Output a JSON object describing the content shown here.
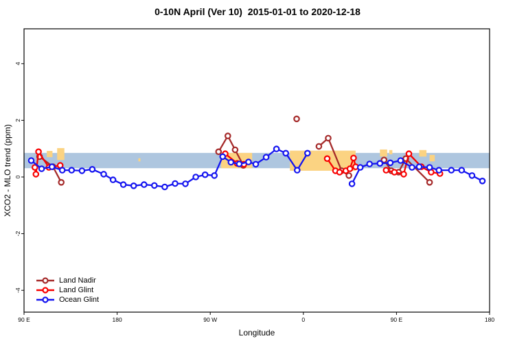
{
  "chart_data": {
    "type": "line",
    "title": "0-10N April (Ver 10)  2015-01-01 to 2020-12-18",
    "xlabel": "Longitude",
    "ylabel": "XCO2 - MLO trend (ppm)",
    "grid": false,
    "legend_position": "bottom-left",
    "x_axis_note": "wrapped longitude axis: 90E -> 180 -> 90W -> 0 -> 90E -> 180, mapped to 90..540",
    "xlim": [
      90,
      540
    ],
    "ylim": [
      -4.77,
      5.23
    ],
    "x_ticks": [
      {
        "x": 90,
        "label": "90 E"
      },
      {
        "x": 180,
        "label": "180"
      },
      {
        "x": 270,
        "label": "90 W"
      },
      {
        "x": 360,
        "label": "0"
      },
      {
        "x": 450,
        "label": "90 E"
      },
      {
        "x": 540,
        "label": "180"
      }
    ],
    "y_ticks": [
      {
        "y": -4,
        "label": "-4"
      },
      {
        "y": -2,
        "label": "-2"
      },
      {
        "y": 0,
        "label": "0"
      },
      {
        "y": 2,
        "label": "2"
      },
      {
        "y": 4,
        "label": "4"
      }
    ],
    "bands": [
      {
        "name": "reference-band-blue",
        "color": "#AEC6DF",
        "x1": 90,
        "x2": 540,
        "y1": 0.31,
        "y2": 0.85
      },
      {
        "name": "highlight-band-orange-left-a",
        "color": "#FBD382",
        "x1": 112,
        "x2": 117.5,
        "y1": 0.7,
        "y2": 0.92
      },
      {
        "name": "highlight-band-orange-left-b",
        "color": "#FBD382",
        "x1": 122,
        "x2": 129,
        "y1": 0.6,
        "y2": 1.02
      },
      {
        "name": "highlight-band-orange-dot",
        "color": "#FBD382",
        "x1": 200.5,
        "x2": 202.5,
        "y1": 0.55,
        "y2": 0.66
      },
      {
        "name": "highlight-band-orange-90W",
        "color": "#FBD382",
        "x1": 280.5,
        "x2": 310.5,
        "y1": 0.31,
        "y2": 0.85
      },
      {
        "name": "highlight-band-orange-0",
        "color": "#FBD382",
        "x1": 347,
        "x2": 410.5,
        "y1": 0.22,
        "y2": 0.93
      },
      {
        "name": "highlight-band-orange-right-a",
        "color": "#FBD382",
        "x1": 434,
        "x2": 441,
        "y1": 0.72,
        "y2": 0.97
      },
      {
        "name": "highlight-band-orange-right-b",
        "color": "#FBD382",
        "x1": 443,
        "x2": 446,
        "y1": 0.8,
        "y2": 0.95
      },
      {
        "name": "highlight-band-orange-right-c",
        "color": "#FBD382",
        "x1": 472,
        "x2": 479,
        "y1": 0.72,
        "y2": 0.95
      },
      {
        "name": "highlight-band-orange-right-d",
        "color": "#FBD382",
        "x1": 482,
        "x2": 487,
        "y1": 0.55,
        "y2": 0.78
      }
    ],
    "series": [
      {
        "id": "land-nadir",
        "name": "Land Nadir",
        "color": "#A52A2A",
        "marker": "open-circle",
        "segments": [
          [
            [
              105,
              0.72
            ],
            [
              118,
              0.36
            ],
            [
              126,
              -0.19
            ]
          ],
          [
            [
              278,
              0.89
            ],
            [
              287,
              1.45
            ],
            [
              294,
              0.96
            ],
            [
              302,
              0.41
            ]
          ],
          [
            [
              353.5,
              2.05
            ]
          ],
          [
            [
              375,
              1.08
            ],
            [
              384,
              1.37
            ],
            [
              397,
              0.22
            ],
            [
              404,
              0.05
            ]
          ],
          [
            [
              438,
              0.6
            ],
            [
              445,
              0.22
            ],
            [
              452,
              0.17
            ],
            [
              459,
              0.65
            ],
            [
              482,
              -0.19
            ]
          ]
        ]
      },
      {
        "id": "land-glint",
        "name": "Land Glint",
        "color": "#F80000",
        "marker": "open-circle",
        "segments": [
          [
            [
              100.5,
              0.34
            ],
            [
              101.5,
              0.1
            ],
            [
              104,
              0.89
            ],
            [
              114,
              0.34
            ],
            [
              125,
              0.41
            ]
          ],
          [
            [
              284.5,
              0.82
            ],
            [
              296,
              0.48
            ],
            [
              302.5,
              0.45
            ]
          ],
          [
            [
              383,
              0.65
            ],
            [
              391,
              0.22
            ],
            [
              395,
              0.17
            ],
            [
              401,
              0.22
            ],
            [
              405,
              0.29
            ],
            [
              408.5,
              0.67
            ],
            [
              410.5,
              0.36
            ]
          ],
          [
            [
              440,
              0.24
            ],
            [
              448,
              0.17
            ],
            [
              457,
              0.1
            ],
            [
              462,
              0.82
            ],
            [
              474,
              0.36
            ],
            [
              483.5,
              0.17
            ],
            [
              492,
              0.12
            ]
          ]
        ]
      },
      {
        "id": "ocean-glint",
        "name": "Ocean Glint",
        "color": "#1414F0",
        "marker": "open-circle",
        "segments": [
          [
            [
              97,
              0.58
            ],
            [
              107,
              0.29
            ],
            [
              117,
              0.36
            ],
            [
              127,
              0.24
            ],
            [
              136,
              0.24
            ],
            [
              146,
              0.22
            ],
            [
              156,
              0.27
            ],
            [
              167,
              0.1
            ],
            [
              176,
              -0.1
            ],
            [
              186,
              -0.27
            ],
            [
              196,
              -0.31
            ],
            [
              206,
              -0.27
            ],
            [
              216,
              -0.3
            ],
            [
              226,
              -0.35
            ],
            [
              236,
              -0.23
            ],
            [
              246,
              -0.24
            ],
            [
              256,
              0.0
            ],
            [
              265,
              0.08
            ],
            [
              274,
              0.05
            ],
            [
              282,
              0.72
            ],
            [
              290,
              0.52
            ],
            [
              298,
              0.46
            ],
            [
              307,
              0.53
            ],
            [
              314,
              0.45
            ],
            [
              324,
              0.7
            ],
            [
              334,
              0.99
            ],
            [
              343,
              0.84
            ],
            [
              354,
              0.24
            ],
            [
              364,
              0.84
            ]
          ],
          [
            [
              407,
              -0.24
            ],
            [
              415,
              0.34
            ],
            [
              424,
              0.46
            ],
            [
              434,
              0.48
            ],
            [
              444,
              0.5
            ],
            [
              454,
              0.58
            ],
            [
              465,
              0.34
            ],
            [
              472,
              0.36
            ],
            [
              482,
              0.34
            ],
            [
              491,
              0.24
            ],
            [
              503,
              0.24
            ],
            [
              513,
              0.24
            ],
            [
              523,
              0.05
            ],
            [
              533,
              -0.14
            ]
          ]
        ]
      }
    ],
    "legend": [
      {
        "label": "Land Nadir",
        "color": "#A52A2A"
      },
      {
        "label": "Land Glint",
        "color": "#F80000"
      },
      {
        "label": "Ocean Glint",
        "color": "#1414F0"
      }
    ]
  }
}
